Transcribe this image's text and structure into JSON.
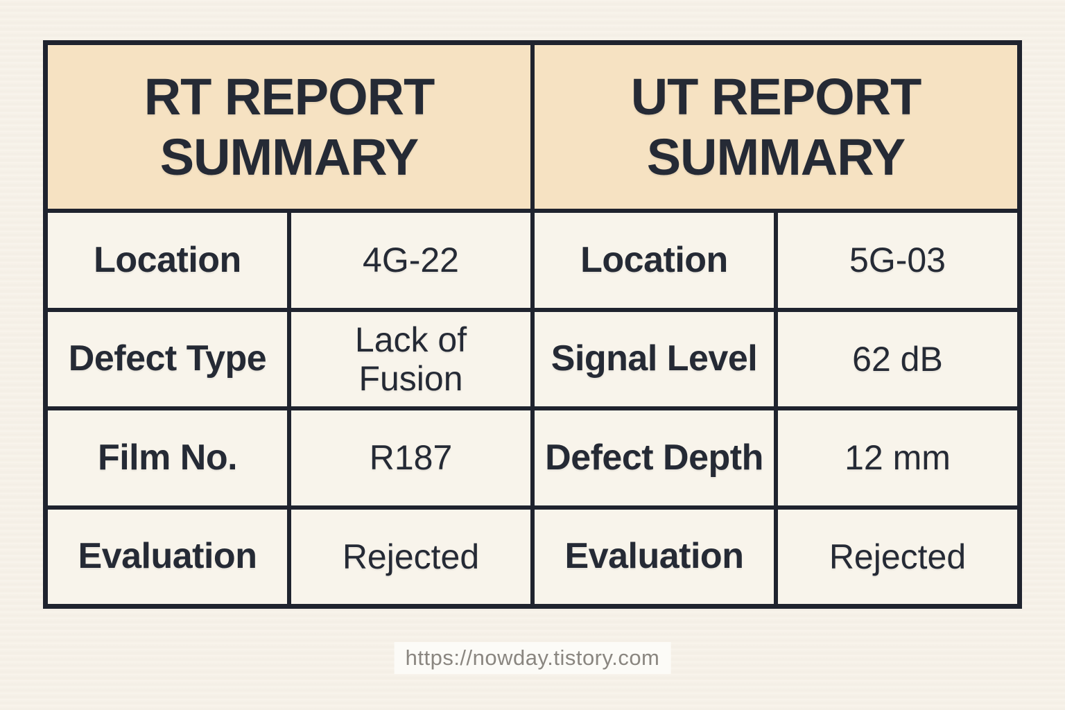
{
  "page": {
    "background": "#f6f1e8",
    "footer_url": "https://nowday.tistory.com"
  },
  "colors": {
    "header_bg": "#f6e2c2",
    "cell_bg": "#f8f4eb",
    "border": "#1f232e",
    "text": "#252a35",
    "footer_text": "#8a8680",
    "footer_label_bg": "#fcfbf7"
  },
  "tables": [
    {
      "title": "RT REPORT SUMMARY",
      "rows": [
        {
          "label": "Location",
          "value": "4G-22"
        },
        {
          "label": "Defect Type",
          "value": "Lack of Fusion"
        },
        {
          "label": "Film No.",
          "value": "R187"
        },
        {
          "label": "Evaluation",
          "value": "Rejected"
        }
      ]
    },
    {
      "title": "UT REPORT SUMMARY",
      "rows": [
        {
          "label": "Location",
          "value": "5G-03"
        },
        {
          "label": "Signal Level",
          "value": "62 dB"
        },
        {
          "label": "Defect Depth",
          "value": "12 mm"
        },
        {
          "label": "Evaluation",
          "value": "Rejected"
        }
      ]
    }
  ]
}
